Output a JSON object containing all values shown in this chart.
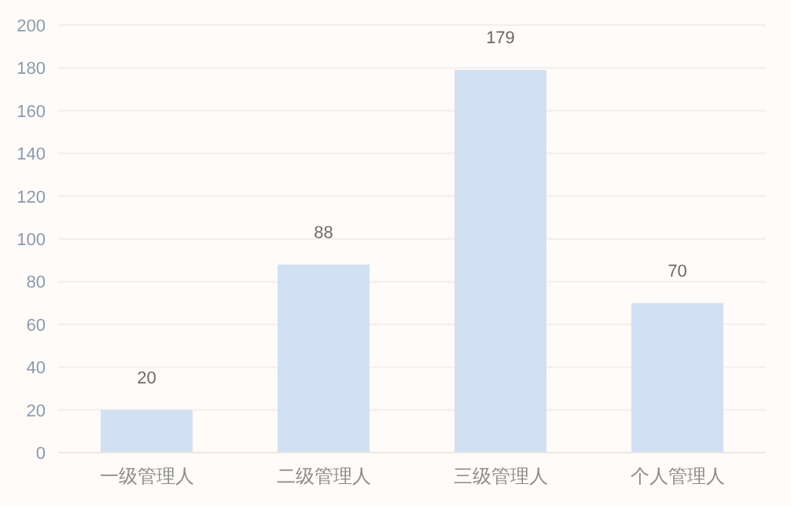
{
  "chart_data": {
    "type": "bar",
    "categories": [
      "一级管理人",
      "二级管理人",
      "三级管理人",
      "个人管理人"
    ],
    "values": [
      20,
      88,
      179,
      70
    ],
    "color": "#d2e0f3",
    "ylim": [
      0,
      200
    ],
    "yticks": [
      0,
      20,
      40,
      60,
      80,
      100,
      120,
      140,
      160,
      180,
      200
    ],
    "grid": "y",
    "data_labels": true
  }
}
